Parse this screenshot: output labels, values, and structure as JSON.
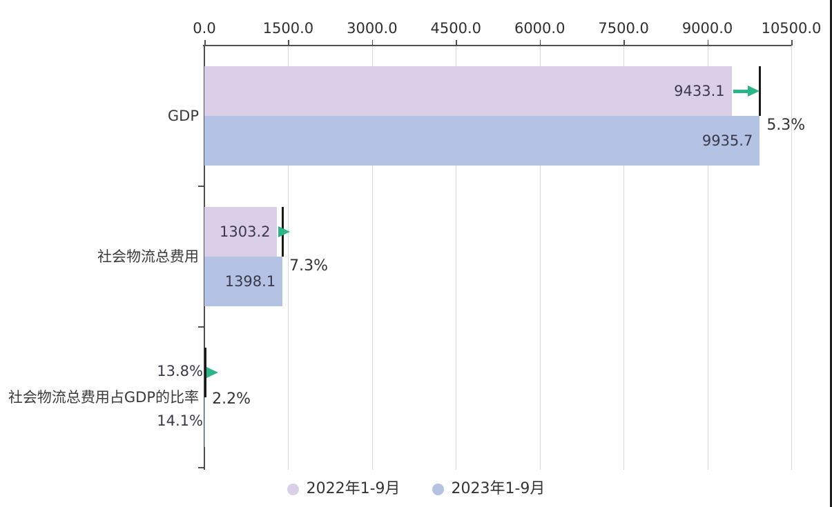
{
  "app": {
    "background_color": "#ffffff",
    "right_edge_color": "#1f1f1f"
  },
  "chart_data": {
    "type": "bar",
    "orientation": "horizontal",
    "title": "",
    "categories": [
      "GDP",
      "社会物流总费用",
      "社会物流总费用占GDP的比率"
    ],
    "series": [
      {
        "name": "2022年1-9月",
        "color": "#dbcfe8",
        "values": [
          9433.1,
          1303.2,
          13.8
        ],
        "value_labels": [
          "9433.1",
          "1303.2",
          "13.8%"
        ]
      },
      {
        "name": "2023年1-9月",
        "color": "#b4c2e3",
        "values": [
          9935.7,
          1398.1,
          14.1
        ],
        "value_labels": [
          "9935.7",
          "1398.1",
          "14.1%"
        ]
      }
    ],
    "change_annotations": [
      {
        "category": "GDP",
        "label": "5.3%"
      },
      {
        "category": "社会物流总费用",
        "label": "7.3%"
      },
      {
        "category": "社会物流总费用占GDP的比率",
        "label": "2.2%"
      }
    ],
    "xaxis": {
      "position": "top",
      "min": 0,
      "max": 10500,
      "step": 1500,
      "ticks": [
        "0.0",
        "1500.0",
        "3000.0",
        "4500.0",
        "6000.0",
        "7500.0",
        "9000.0",
        "10500.0"
      ],
      "grid": true
    },
    "legend_position": "bottom",
    "colors": {
      "arrow": "#2ab587",
      "marker": "#1a1a1a",
      "grid": "#d8d8d8",
      "axis": "#4f4f4f",
      "text": "#333333"
    }
  }
}
